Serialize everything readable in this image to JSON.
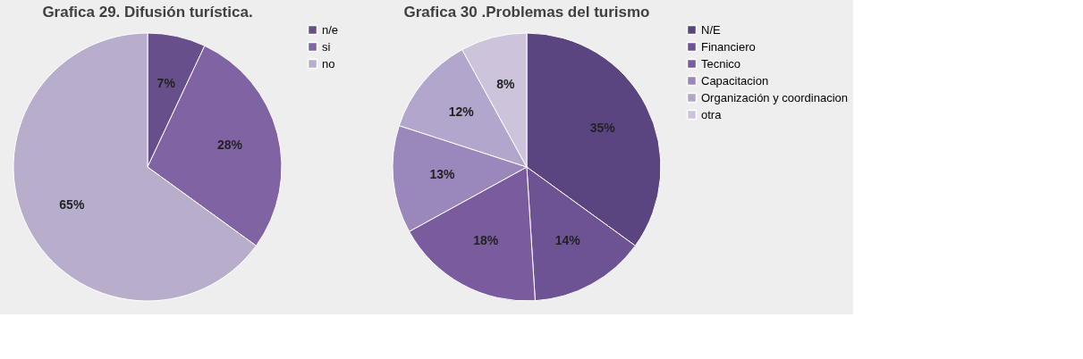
{
  "chart_data": [
    {
      "type": "pie",
      "title": "Grafica 29. Difusión turística.",
      "categories": [
        "n/e",
        "si",
        "no"
      ],
      "values": [
        7,
        28,
        65
      ],
      "value_labels": [
        "7%",
        "28%",
        "65%"
      ],
      "colors": [
        "#674f8c",
        "#8063a3",
        "#b8aecb"
      ],
      "legend": "right"
    },
    {
      "type": "pie",
      "title": "Grafica 30 .Problemas del turismo",
      "categories": [
        "N/E",
        "Financiero",
        "Tecnico",
        "Capacitacion",
        "Organización y coordinacion",
        "otra"
      ],
      "values": [
        35,
        14,
        18,
        13,
        12,
        8
      ],
      "value_labels": [
        "35%",
        "14%",
        "18%",
        "13%",
        "12%",
        "8%"
      ],
      "colors": [
        "#5b4580",
        "#6d5294",
        "#7a5c9e",
        "#9a87bb",
        "#b3a6cc",
        "#cdc4dc"
      ],
      "legend": "right"
    }
  ]
}
